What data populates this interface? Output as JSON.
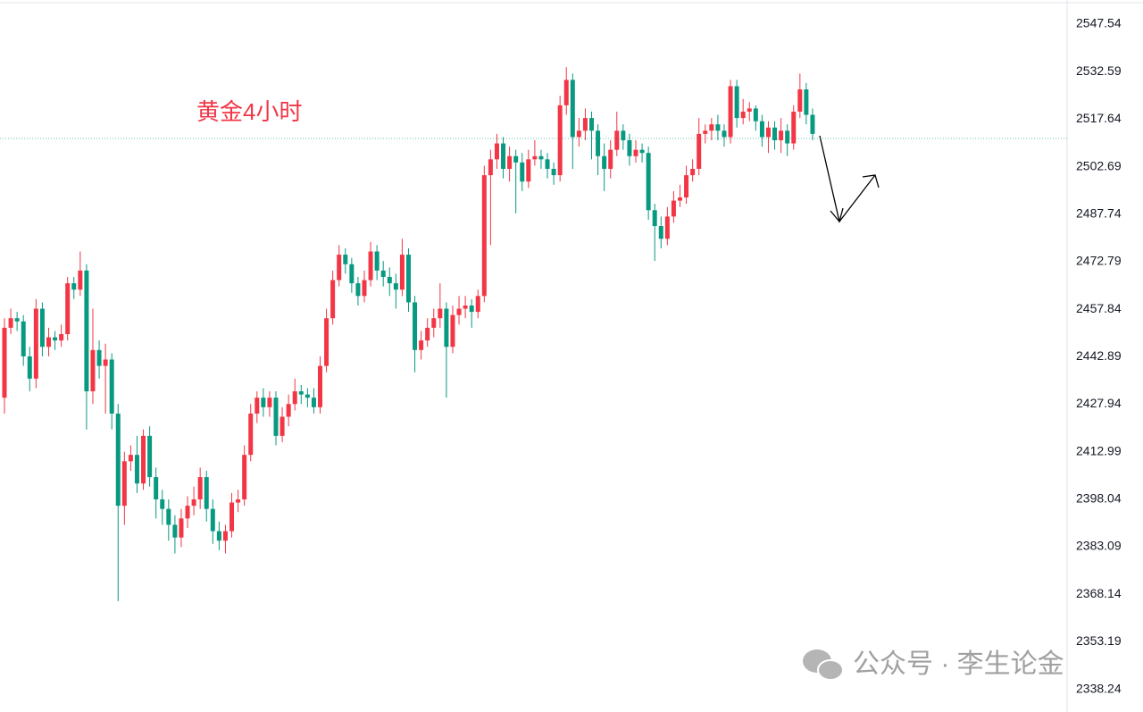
{
  "chart_data": {
    "type": "candlestick",
    "annotation": "黄金4小时",
    "watermark": "公众号 · 李生论金",
    "up_color": "#f23645",
    "down_color": "#089981",
    "ylim": [
      2331.1,
      2555.13
    ],
    "yticks": [
      2547.54,
      2532.59,
      2517.64,
      2502.69,
      2487.74,
      2472.79,
      2457.84,
      2442.89,
      2427.94,
      2412.99,
      2398.04,
      2383.09,
      2368.14,
      2353.19,
      2338.24
    ],
    "price_line": 2511.57,
    "open": [
      2430,
      2452,
      2455,
      2454,
      2443,
      2436,
      2458,
      2446,
      2449,
      2448,
      2450,
      2466,
      2464,
      2470,
      2432,
      2445,
      2440,
      2442,
      2425,
      2396,
      2410,
      2412,
      2403,
      2418,
      2405,
      2398,
      2395,
      2390,
      2386,
      2392,
      2396,
      2398,
      2405,
      2395,
      2388,
      2385,
      2388,
      2397,
      2398,
      2412,
      2425,
      2430,
      2427,
      2430,
      2418,
      2424,
      2428,
      2432,
      2431,
      2430,
      2427,
      2440,
      2455,
      2467,
      2475,
      2472,
      2466,
      2462,
      2467,
      2476,
      2470,
      2468,
      2466,
      2464,
      2475,
      2460,
      2445,
      2448,
      2452,
      2455,
      2458,
      2446,
      2456,
      2458,
      2459,
      2457,
      2462,
      2500,
      2505,
      2510,
      2502,
      2506,
      2504,
      2498,
      2505,
      2506,
      2505,
      2502,
      2500,
      2522,
      2530,
      2512,
      2514,
      2518,
      2514,
      2506,
      2502,
      2508,
      2514,
      2511,
      2506,
      2508,
      2507,
      2489,
      2484,
      2480,
      2487,
      2492,
      2493,
      2500,
      2502,
      2513,
      2514,
      2516,
      2514,
      2512,
      2528,
      2518,
      2520,
      2521,
      2517,
      2512,
      2515,
      2511,
      2514,
      2510,
      2520,
      2527,
      2519
    ],
    "high": [
      2455,
      2458,
      2457,
      2456,
      2446,
      2461,
      2460,
      2452,
      2451,
      2453,
      2468,
      2468,
      2476,
      2472,
      2458,
      2448,
      2447,
      2444,
      2428,
      2413,
      2415,
      2418,
      2420,
      2421,
      2408,
      2401,
      2398,
      2393,
      2395,
      2399,
      2402,
      2408,
      2407,
      2398,
      2391,
      2390,
      2400,
      2401,
      2415,
      2428,
      2432,
      2433,
      2432,
      2432,
      2427,
      2431,
      2436,
      2434,
      2433,
      2433,
      2443,
      2458,
      2470,
      2478,
      2477,
      2474,
      2468,
      2470,
      2479,
      2478,
      2473,
      2471,
      2469,
      2480,
      2477,
      2462,
      2451,
      2455,
      2458,
      2466,
      2460,
      2459,
      2462,
      2462,
      2461,
      2464,
      2503,
      2508,
      2513,
      2512,
      2509,
      2508,
      2507,
      2508,
      2511,
      2508,
      2507,
      2504,
      2525,
      2534,
      2532,
      2518,
      2521,
      2520,
      2516,
      2510,
      2511,
      2520,
      2516,
      2513,
      2511,
      2510,
      2509,
      2491,
      2487,
      2490,
      2495,
      2497,
      2503,
      2505,
      2518,
      2516,
      2518,
      2519,
      2516,
      2530,
      2530,
      2524,
      2523,
      2522,
      2519,
      2517,
      2517,
      2518,
      2516,
      2522,
      2532,
      2529,
      2521
    ],
    "low": [
      2425,
      2450,
      2451,
      2440,
      2432,
      2433,
      2443,
      2443,
      2445,
      2446,
      2448,
      2461,
      2462,
      2420,
      2428,
      2436,
      2425,
      2420,
      2366,
      2390,
      2407,
      2400,
      2401,
      2402,
      2392,
      2390,
      2385,
      2381,
      2383,
      2389,
      2393,
      2395,
      2391,
      2384,
      2382,
      2381,
      2386,
      2394,
      2396,
      2410,
      2422,
      2424,
      2424,
      2415,
      2416,
      2421,
      2426,
      2428,
      2427,
      2425,
      2425,
      2438,
      2453,
      2465,
      2469,
      2463,
      2459,
      2460,
      2465,
      2467,
      2465,
      2462,
      2458,
      2462,
      2457,
      2438,
      2442,
      2446,
      2449,
      2452,
      2430,
      2444,
      2453,
      2455,
      2452,
      2455,
      2460,
      2478,
      2502,
      2499,
      2498,
      2488,
      2495,
      2496,
      2503,
      2502,
      2499,
      2497,
      2498,
      2519,
      2502,
      2509,
      2511,
      2505,
      2500,
      2495,
      2499,
      2506,
      2508,
      2503,
      2504,
      2504,
      2486,
      2473,
      2477,
      2478,
      2485,
      2490,
      2491,
      2498,
      2500,
      2510,
      2511,
      2511,
      2509,
      2510,
      2515,
      2516,
      2517,
      2514,
      2509,
      2507,
      2508,
      2507,
      2506,
      2508,
      2518,
      2516,
      2511
    ],
    "close": [
      2452,
      2455,
      2454,
      2443,
      2436,
      2458,
      2446,
      2449,
      2448,
      2450,
      2466,
      2464,
      2470,
      2432,
      2445,
      2440,
      2442,
      2425,
      2396,
      2410,
      2412,
      2403,
      2418,
      2405,
      2398,
      2395,
      2390,
      2386,
      2392,
      2396,
      2398,
      2405,
      2395,
      2388,
      2385,
      2388,
      2397,
      2398,
      2412,
      2425,
      2430,
      2427,
      2430,
      2418,
      2424,
      2428,
      2432,
      2431,
      2430,
      2427,
      2440,
      2455,
      2467,
      2475,
      2472,
      2466,
      2462,
      2467,
      2476,
      2470,
      2468,
      2466,
      2464,
      2475,
      2460,
      2445,
      2448,
      2452,
      2455,
      2458,
      2446,
      2456,
      2458,
      2459,
      2457,
      2462,
      2500,
      2505,
      2510,
      2502,
      2506,
      2504,
      2498,
      2505,
      2506,
      2505,
      2502,
      2500,
      2522,
      2530,
      2512,
      2514,
      2518,
      2514,
      2506,
      2502,
      2508,
      2514,
      2511,
      2506,
      2508,
      2507,
      2489,
      2484,
      2480,
      2487,
      2492,
      2493,
      2500,
      2502,
      2513,
      2514,
      2516,
      2514,
      2512,
      2528,
      2518,
      2520,
      2521,
      2517,
      2512,
      2515,
      2511,
      2514,
      2510,
      2520,
      2527,
      2519,
      2513
    ]
  }
}
